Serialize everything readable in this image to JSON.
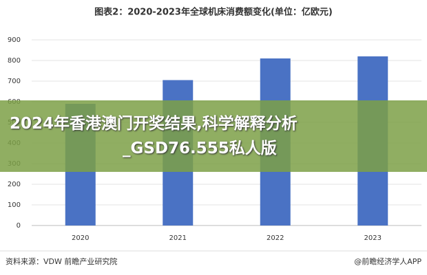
{
  "chart_data": {
    "type": "bar",
    "title": "图表2：2020-2023年全球机床消费额变化(单位：亿欧元)",
    "categories": [
      "2020",
      "2021",
      "2022",
      "2023"
    ],
    "values": [
      590,
      705,
      810,
      820
    ],
    "color": "#4a72c4",
    "ylim": [
      0,
      900
    ],
    "yticks": [
      0,
      100,
      200,
      300,
      400,
      500,
      600,
      700,
      800,
      900
    ],
    "grid": true
  },
  "footer": {
    "source": "资料来源：VDW 前瞻产业研究院",
    "credit": "@前瞻经济学人APP"
  },
  "banner": {
    "lines": [
      "2024年香港澳门开奖结果,科学解释分析",
      "_GSD76.555私人版"
    ]
  }
}
